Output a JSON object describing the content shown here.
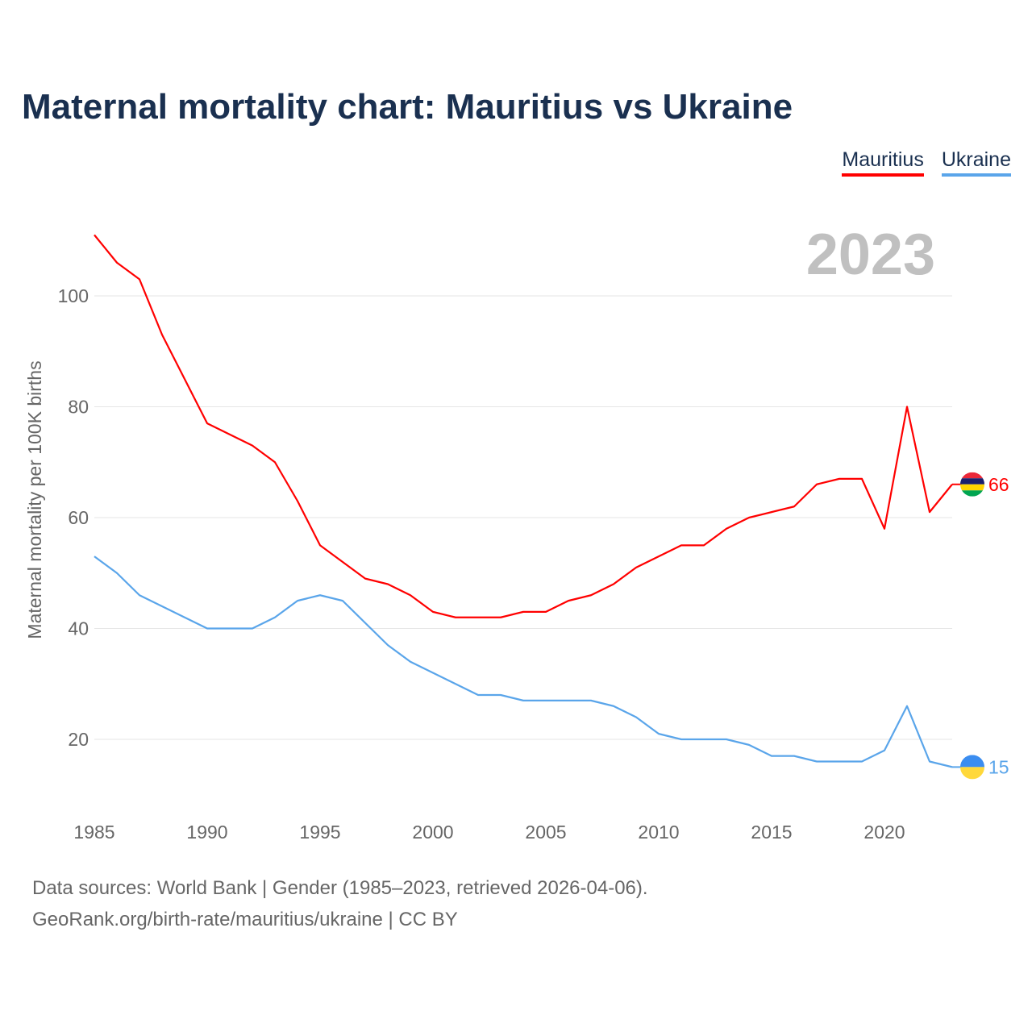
{
  "title": "Maternal mortality chart: Mauritius vs Ukraine",
  "year_label": "2023",
  "footer": {
    "line1": "Data sources: World Bank | Gender (1985–2023, retrieved 2026-04-06).",
    "line2": "GeoRank.org/birth-rate/mauritius/ukraine | CC BY"
  },
  "chart_data": {
    "type": "line",
    "title": "Maternal mortality chart: Mauritius vs Ukraine",
    "xlabel": "",
    "ylabel": "Maternal mortality per 100K births",
    "xlim": [
      1985,
      2023
    ],
    "ylim": [
      0,
      115
    ],
    "x_ticks": [
      1985,
      1990,
      1995,
      2000,
      2005,
      2010,
      2015,
      2020
    ],
    "y_ticks": [
      20,
      40,
      60,
      80,
      100
    ],
    "grid": true,
    "legend_position": "top-right",
    "x": [
      1985,
      1986,
      1987,
      1988,
      1989,
      1990,
      1991,
      1992,
      1993,
      1994,
      1995,
      1996,
      1997,
      1998,
      1999,
      2000,
      2001,
      2002,
      2003,
      2004,
      2005,
      2006,
      2007,
      2008,
      2009,
      2010,
      2011,
      2012,
      2013,
      2014,
      2015,
      2016,
      2017,
      2018,
      2019,
      2020,
      2021,
      2022,
      2023
    ],
    "series": [
      {
        "name": "Mauritius",
        "color": "#ff0000",
        "end_label": "66",
        "values": [
          111,
          106,
          103,
          93,
          85,
          77,
          75,
          73,
          70,
          63,
          55,
          52,
          49,
          48,
          46,
          43,
          42,
          42,
          42,
          43,
          43,
          45,
          46,
          48,
          51,
          53,
          55,
          55,
          58,
          60,
          61,
          62,
          66,
          67,
          67,
          58,
          80,
          61,
          66
        ]
      },
      {
        "name": "Ukraine",
        "color": "#5aa5ea",
        "end_label": "15",
        "values": [
          53,
          50,
          46,
          44,
          42,
          40,
          40,
          40,
          42,
          45,
          46,
          45,
          41,
          37,
          34,
          32,
          30,
          28,
          28,
          27,
          27,
          27,
          27,
          26,
          24,
          21,
          20,
          20,
          20,
          19,
          17,
          17,
          16,
          16,
          16,
          18,
          26,
          16,
          15
        ]
      }
    ]
  }
}
